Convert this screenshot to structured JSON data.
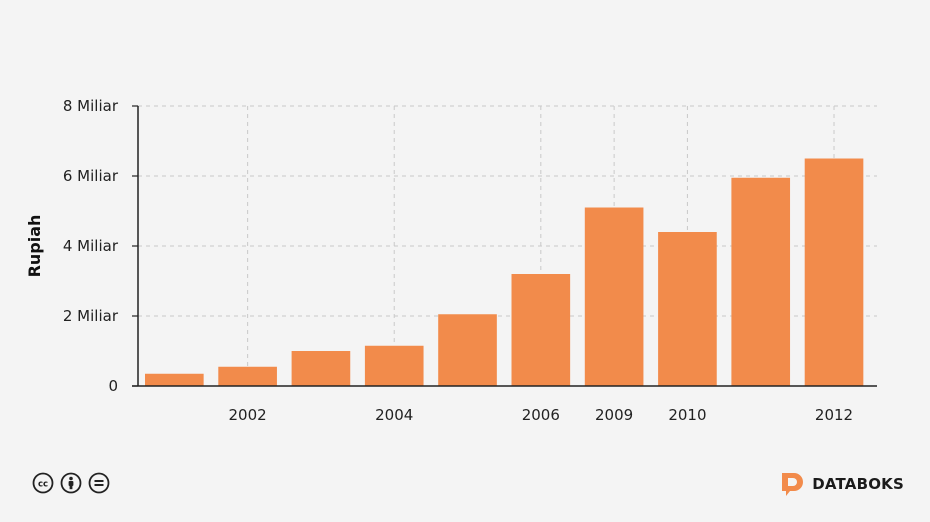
{
  "chart_data": {
    "type": "bar",
    "categories": [
      "",
      "2002",
      "",
      "2004",
      "",
      "2006",
      "2009",
      "2010",
      "",
      "2012"
    ],
    "values": [
      0.35,
      0.55,
      1.0,
      1.15,
      2.05,
      3.2,
      5.1,
      4.4,
      5.95,
      6.5
    ],
    "ylabel": "Rupiah",
    "ylim": [
      0,
      8
    ],
    "yticks": [
      {
        "value": 0,
        "label": "0"
      },
      {
        "value": 2,
        "label": "2 Miliar"
      },
      {
        "value": 4,
        "label": "4 Miliar"
      },
      {
        "value": 6,
        "label": "6 Miliar"
      },
      {
        "value": 8,
        "label": "8 Miliar"
      }
    ],
    "grid": true,
    "bar_color": "#f28b4b"
  },
  "brand": {
    "name": "DATABOKS",
    "color": "#f28b4b"
  },
  "license": {
    "icons": [
      "cc-icon",
      "by-icon",
      "nd-icon"
    ]
  }
}
